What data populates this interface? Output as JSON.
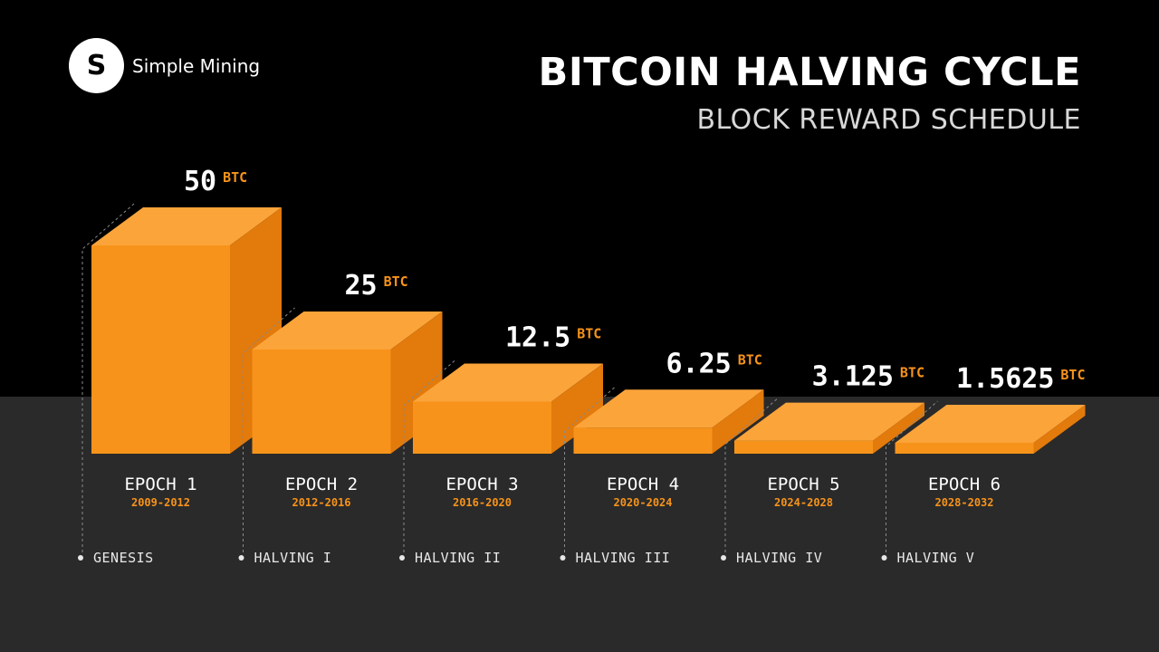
{
  "brand": {
    "mark": "S",
    "name": "Simple Mining"
  },
  "header": {
    "title": "BITCOIN HALVING CYCLE",
    "subtitle": "BLOCK REWARD SCHEDULE"
  },
  "colors": {
    "front": "#f7931a",
    "top": "#fba43a",
    "side": "#e27a0c",
    "floor": "#2a2a2a",
    "background": "#000000"
  },
  "chart_data": {
    "type": "bar",
    "title": "BITCOIN HALVING CYCLE",
    "subtitle": "BLOCK REWARD SCHEDULE",
    "unit": "BTC",
    "categories": [
      "EPOCH 1",
      "EPOCH 2",
      "EPOCH 3",
      "EPOCH 4",
      "EPOCH 5",
      "EPOCH 6"
    ],
    "periods": [
      "2009-2012",
      "2012-2016",
      "2016-2020",
      "2020-2024",
      "2024-2028",
      "2028-2032"
    ],
    "events": [
      "GENESIS",
      "HALVING I",
      "HALVING II",
      "HALVING III",
      "HALVING IV",
      "HALVING V"
    ],
    "values": [
      50,
      25,
      12.5,
      6.25,
      3.125,
      1.5625
    ],
    "value_labels": [
      "50",
      "25",
      "12.5",
      "6.25",
      "3.125",
      "1.5625"
    ],
    "ylim": [
      0,
      50
    ],
    "grid": false,
    "legend": "none"
  }
}
